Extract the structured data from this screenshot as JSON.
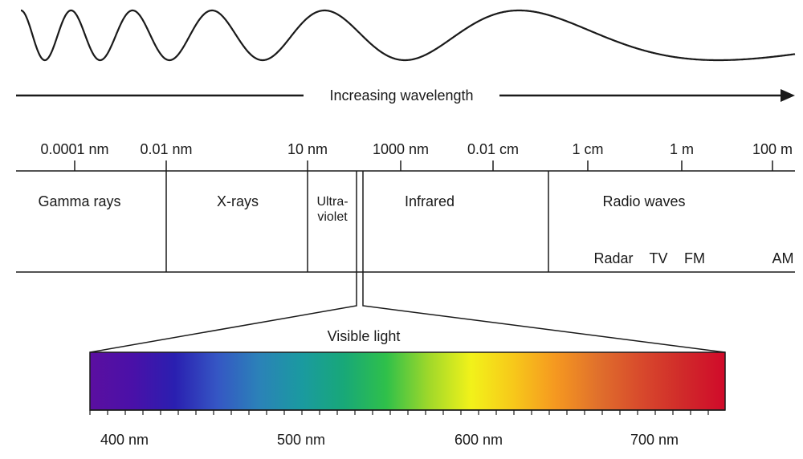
{
  "wave": {
    "arrow_label": "Increasing wavelength"
  },
  "scale": {
    "ticks": [
      {
        "label": "0.0001 nm"
      },
      {
        "label": "0.01 nm"
      },
      {
        "label": "10 nm"
      },
      {
        "label": "1000 nm"
      },
      {
        "label": "0.01 cm"
      },
      {
        "label": "1 cm"
      },
      {
        "label": "1 m"
      },
      {
        "label": "100 m"
      }
    ]
  },
  "bands": {
    "gamma": "Gamma rays",
    "xray": "X-rays",
    "uv_line1": "Ultra-",
    "uv_line2": "violet",
    "infrared": "Infrared",
    "radio": "Radio waves",
    "radio_sub": [
      "Radar",
      "TV",
      "FM",
      "AM"
    ]
  },
  "visible": {
    "title": "Visible light",
    "axis_labels": [
      "400 nm",
      "500 nm",
      "600 nm",
      "700 nm"
    ],
    "colors": [
      "#5b0fa0",
      "#4a10a8",
      "#2a1fb0",
      "#3556c4",
      "#2b82b8",
      "#1a9aa0",
      "#18a878",
      "#2fc04a",
      "#9fd82a",
      "#f2f21a",
      "#f7c81a",
      "#f59820",
      "#e0702c",
      "#d84a2c",
      "#d02a2a",
      "#d00a2a"
    ]
  }
}
